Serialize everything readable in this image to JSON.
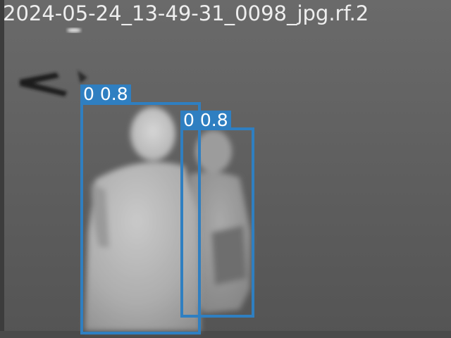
{
  "image": {
    "filename_overlay": "2024-05-24_13-49-31_0098_jpg.rf.2"
  },
  "detections": [
    {
      "class_id": "0",
      "score": "0.8",
      "color": "#2f7fc1"
    },
    {
      "class_id": "0",
      "score": "0.8",
      "color": "#2f7fc1"
    }
  ]
}
